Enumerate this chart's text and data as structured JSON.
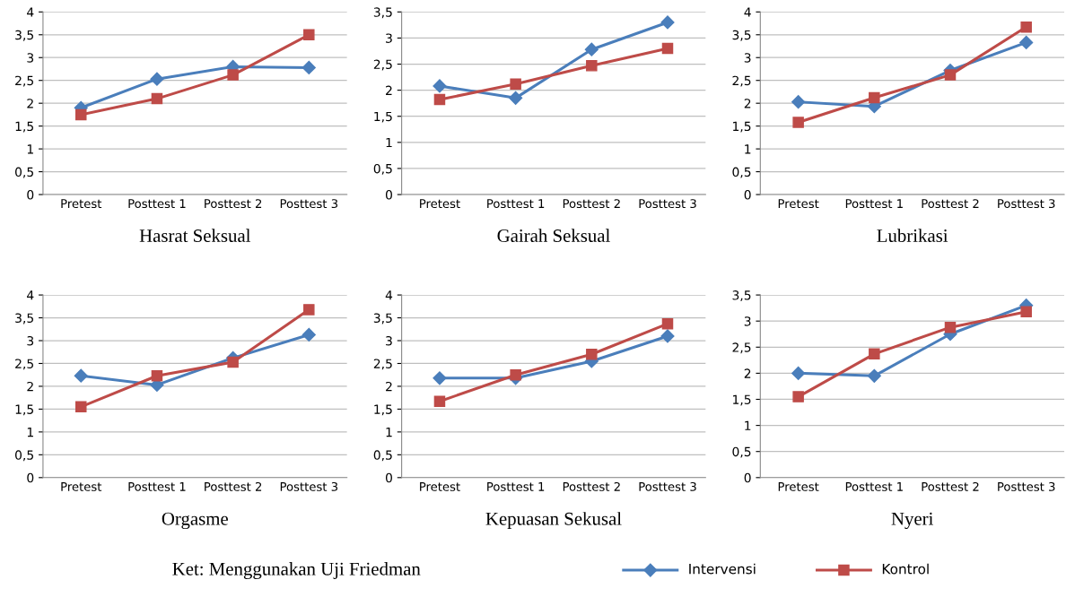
{
  "chart_data": [
    {
      "type": "line",
      "title": "Hasrat Seksual",
      "categories": [
        "Pretest",
        "Posttest 1",
        "Posttest 2",
        "Posttest 3"
      ],
      "ylim": [
        0,
        4
      ],
      "yticks": [
        0,
        {
          "value": 0.5,
          "label": "0,5"
        },
        1,
        {
          "value": 1.5,
          "label": "1,5"
        },
        2,
        {
          "value": 2.5,
          "label": "2,5"
        },
        3,
        {
          "value": 3.5,
          "label": "3,5"
        },
        4
      ],
      "grid": "y",
      "legend": "bottom",
      "annotations": [
        "Ket: Menggunakan Uji Friedman"
      ],
      "series": [
        {
          "name": "Intervensi",
          "color": "#4a7ebb",
          "marker": "diamond",
          "values": [
            1.9,
            2.53,
            2.8,
            2.78
          ]
        },
        {
          "name": "Kontrol",
          "color": "#be4b48",
          "marker": "square",
          "values": [
            1.75,
            2.1,
            2.62,
            3.5
          ]
        }
      ]
    },
    {
      "type": "line",
      "title": "Gairah Seksual",
      "categories": [
        "Pretest",
        "Posttest 1",
        "Posttest 2",
        "Posttest 3"
      ],
      "ylim": [
        0,
        3.5
      ],
      "yticks": [
        0,
        {
          "value": 0.5,
          "label": "0,5"
        },
        1,
        {
          "value": 1.5,
          "label": "1,5"
        },
        2,
        {
          "value": 2.5,
          "label": "2,5"
        },
        3,
        {
          "value": 3.5,
          "label": "3,5"
        }
      ],
      "grid": "y",
      "series": [
        {
          "color": "#4a7ebb",
          "marker": "diamond",
          "values": [
            2.08,
            1.85,
            2.78,
            3.3
          ]
        },
        {
          "color": "#be4b48",
          "marker": "square",
          "values": [
            1.82,
            2.12,
            2.47,
            2.8
          ]
        }
      ]
    },
    {
      "type": "line",
      "title": "Lubrikasi",
      "categories": [
        "Pretest",
        "Posttest 1",
        "Posttest 2",
        "Posttest 3"
      ],
      "ylim": [
        0,
        4
      ],
      "yticks": [
        0,
        {
          "value": 0.5,
          "label": "0,5"
        },
        1,
        {
          "value": 1.5,
          "label": "1,5"
        },
        2,
        {
          "value": 2.5,
          "label": "2,5"
        },
        3,
        {
          "value": 3.5,
          "label": "3,5"
        },
        4
      ],
      "grid": "y",
      "series": [
        {
          "color": "#4a7ebb",
          "marker": "diamond",
          "values": [
            2.03,
            1.93,
            2.72,
            3.33
          ]
        },
        {
          "color": "#be4b48",
          "marker": "square",
          "values": [
            1.58,
            2.12,
            2.62,
            3.67
          ]
        }
      ]
    },
    {
      "type": "line",
      "title": "Orgasme",
      "categories": [
        "Pretest",
        "Posttest 1",
        "Posttest 2",
        "Posttest 3"
      ],
      "ylim": [
        0,
        4
      ],
      "yticks": [
        0,
        {
          "value": 0.5,
          "label": "0,5"
        },
        1,
        {
          "value": 1.5,
          "label": "1,5"
        },
        2,
        {
          "value": 2.5,
          "label": "2,5"
        },
        3,
        {
          "value": 3.5,
          "label": "3,5"
        },
        4
      ],
      "grid": "y",
      "series": [
        {
          "color": "#4a7ebb",
          "marker": "diamond",
          "values": [
            2.23,
            2.03,
            2.62,
            3.13
          ]
        },
        {
          "color": "#be4b48",
          "marker": "square",
          "values": [
            1.55,
            2.23,
            2.53,
            3.68
          ]
        }
      ]
    },
    {
      "type": "line",
      "title": "Kepuasan Sekusal",
      "categories": [
        "Pretest",
        "Posttest 1",
        "Posttest 2",
        "Posttest 3"
      ],
      "ylim": [
        0,
        4
      ],
      "yticks": [
        0,
        {
          "value": 0.5,
          "label": "0,5"
        },
        1,
        {
          "value": 1.5,
          "label": "1,5"
        },
        2,
        {
          "value": 2.5,
          "label": "2,5"
        },
        3,
        {
          "value": 3.5,
          "label": "3,5"
        },
        4
      ],
      "grid": "y",
      "series": [
        {
          "color": "#4a7ebb",
          "marker": "diamond",
          "values": [
            2.18,
            2.18,
            2.55,
            3.1
          ]
        },
        {
          "color": "#be4b48",
          "marker": "square",
          "values": [
            1.67,
            2.25,
            2.7,
            3.37
          ]
        }
      ]
    },
    {
      "type": "line",
      "title": "Nyeri",
      "categories": [
        "Pretest",
        "Posttest 1",
        "Posttest 2",
        "Posttest 3"
      ],
      "ylim": [
        0,
        3.5
      ],
      "yticks": [
        0,
        {
          "value": 0.5,
          "label": "0,5"
        },
        1,
        {
          "value": 1.5,
          "label": "1,5"
        },
        2,
        {
          "value": 2.5,
          "label": "2,5"
        },
        3,
        {
          "value": 3.5,
          "label": "3,5"
        }
      ],
      "grid": "y",
      "series": [
        {
          "color": "#4a7ebb",
          "marker": "diamond",
          "values": [
            2.0,
            1.95,
            2.75,
            3.3
          ]
        },
        {
          "color": "#be4b48",
          "marker": "square",
          "values": [
            1.55,
            2.37,
            2.88,
            3.18
          ]
        }
      ]
    }
  ]
}
